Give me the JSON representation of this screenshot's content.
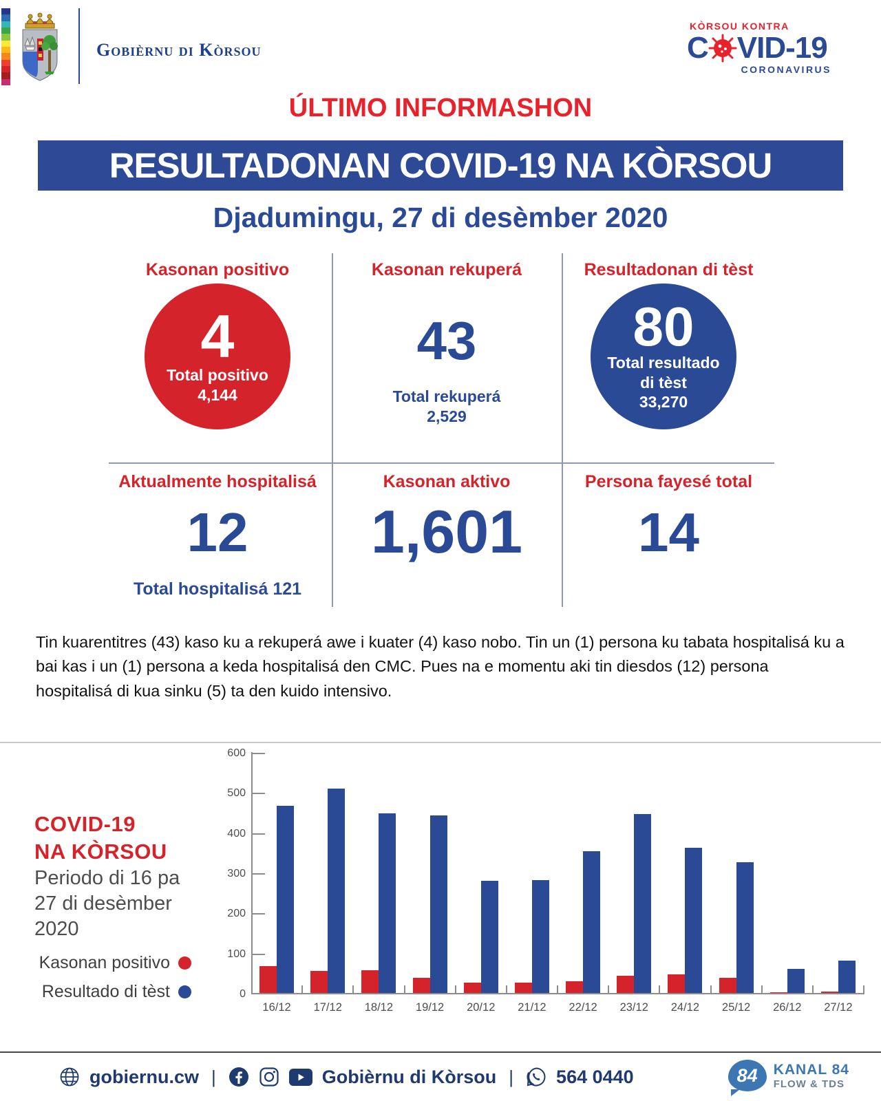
{
  "header": {
    "org_name": "Gobièrnu di Kòrsou",
    "flag_colors": [
      "#27348b",
      "#2a6db5",
      "#35b6b9",
      "#3aa648",
      "#8cc641",
      "#f7ec31",
      "#fdb913",
      "#f6871f",
      "#ef4130",
      "#d6242b",
      "#a61e22",
      "#c52f72"
    ],
    "covid_logo": {
      "kicker": "KÒRSOU KONTRA",
      "title_prefix": "C",
      "title_suffix": "VID-19",
      "subtitle": "CORONAVIRUS"
    },
    "kicker": "ÚLTIMO INFORMASHON",
    "banner_title": "RESULTADONAN COVID-19 NA KÒRSOU",
    "date_line": "Djadumingu, 27 di desèmber 2020"
  },
  "stats": [
    {
      "label": "Kasonan positivo",
      "value": "4",
      "sub1": "Total positivo",
      "sub2": "4,144"
    },
    {
      "label": "Kasonan rekuperá",
      "value": "43",
      "sub1": "Total rekuperá",
      "sub2": "2,529"
    },
    {
      "label": "Resultadonan di tèst",
      "value": "80",
      "sub1": "Total resultado",
      "sub2": "di tèst",
      "sub3": "33,270"
    },
    {
      "label": "Aktualmente hospitalisá",
      "value": "12",
      "sub1": "Total hospitalisá 121"
    },
    {
      "label": "Kasonan aktivo",
      "value": "1,601"
    },
    {
      "label": "Persona fayesé total",
      "value": "14"
    }
  ],
  "paragraph": "Tin kuarentitres (43) kaso ku a rekuperá awe i kuater (4) kaso nobo. Tin un (1) persona ku tabata hospitalisá ku a bai kas i un (1) persona a keda hospitalisá den CMC. Pues na e momentu aki tin diesdos (12) persona hospitalisá di kua sinku (5) ta den kuido intensivo.",
  "chart_panel": {
    "title_line1": "COVID-19",
    "title_line2": "NA KÒRSOU",
    "subtitle_lines": [
      "Periodo di 16 pa",
      "27 di desèmber",
      "2020"
    ]
  },
  "chart_data": {
    "type": "bar",
    "title": "COVID-19 NA KÒRSOU",
    "subtitle": "Periodo di 16 pa 27 di desèmber 2020",
    "categories": [
      "16/12",
      "17/12",
      "18/12",
      "19/12",
      "20/12",
      "21/12",
      "22/12",
      "23/12",
      "24/12",
      "25/12",
      "26/12",
      "27/12"
    ],
    "series": [
      {
        "name": "Kasonan positivo",
        "color": "#d5232b",
        "values": [
          67,
          55,
          57,
          37,
          25,
          25,
          30,
          43,
          47,
          37,
          2,
          4
        ]
      },
      {
        "name": "Resultado di tèst",
        "color": "#2b4a96",
        "values": [
          467,
          510,
          448,
          443,
          280,
          282,
          353,
          445,
          362,
          325,
          60,
          80
        ]
      }
    ],
    "ylim": [
      0,
      600
    ],
    "ytick_step": 100,
    "grid": false,
    "legend_position": "left"
  },
  "footer": {
    "website": "gobiernu.cw",
    "separator": "|",
    "social_name": "Gobièrnu di Kòrsou",
    "phone": "564 0440",
    "kanal_badge": "84",
    "kanal_line1": "KANAL 84",
    "kanal_line2": "FLOW & TDS"
  },
  "colors": {
    "brand_red": "#d5232b",
    "bright_red": "#e8222b",
    "brand_blue": "#2b4a96",
    "banner_blue": "#2e4a96",
    "footer_navy": "#1f3a6e",
    "axis_gray": "#8c8c8c",
    "kanal_blue": "#3c77b3"
  }
}
